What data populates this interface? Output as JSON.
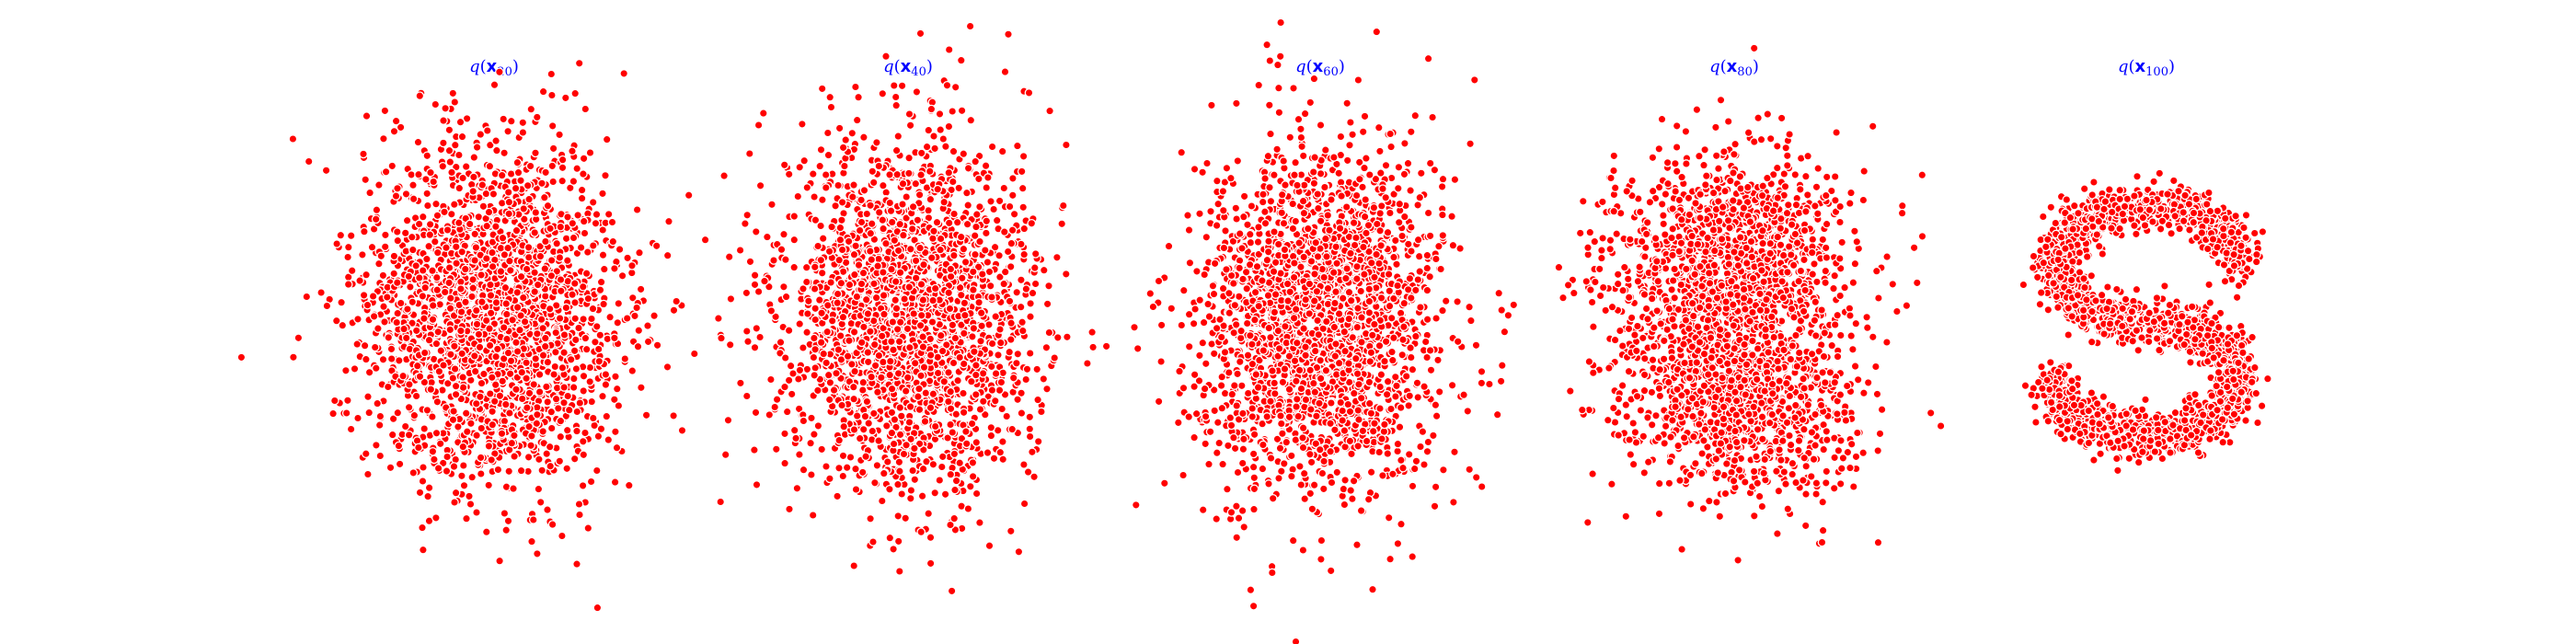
{
  "figure": {
    "background": "#ffffff"
  },
  "chart_data": [
    {
      "type": "scatter",
      "title": "q(x20)",
      "title_parts": {
        "q": "q",
        "open": "(",
        "x": "x",
        "sub": "20",
        "close": ")"
      },
      "title_color": "#0000ff",
      "point_color": "#ff0000",
      "edge_color": "#ffffff",
      "axes": "off",
      "grid": false,
      "shape": "gaussian"
    },
    {
      "type": "scatter",
      "title": "q(x40)",
      "title_parts": {
        "q": "q",
        "open": "(",
        "x": "x",
        "sub": "40",
        "close": ")"
      },
      "title_color": "#0000ff",
      "point_color": "#ff0000",
      "edge_color": "#ffffff",
      "axes": "off",
      "grid": false,
      "shape": "gaussian"
    },
    {
      "type": "scatter",
      "title": "q(x60)",
      "title_parts": {
        "q": "q",
        "open": "(",
        "x": "x",
        "sub": "60",
        "close": ")"
      },
      "title_color": "#0000ff",
      "point_color": "#ff0000",
      "edge_color": "#ffffff",
      "axes": "off",
      "grid": false,
      "shape": "gaussian"
    },
    {
      "type": "scatter",
      "title": "q(x80)",
      "title_parts": {
        "q": "q",
        "open": "(",
        "x": "x",
        "sub": "80",
        "close": ")"
      },
      "title_color": "#0000ff",
      "point_color": "#ff0000",
      "edge_color": "#ffffff",
      "axes": "off",
      "grid": false,
      "shape": "two-lobed blob"
    },
    {
      "type": "scatter",
      "title": "q(x100)",
      "title_parts": {
        "q": "q",
        "open": "(",
        "x": "x",
        "sub": "100",
        "close": ")"
      },
      "title_color": "#0000ff",
      "point_color": "#ff0000",
      "edge_color": "#ffffff",
      "axes": "off",
      "grid": false,
      "shape": "S-curve"
    }
  ]
}
